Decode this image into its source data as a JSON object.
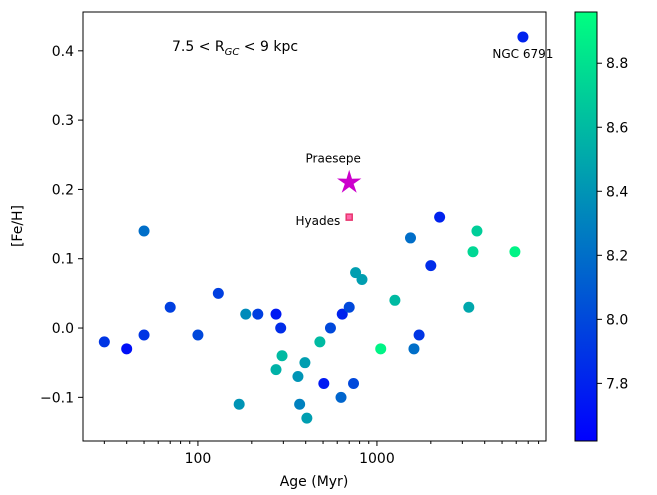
{
  "chart_data": {
    "type": "scatter",
    "xlabel": "Age (Myr)",
    "ylabel": "[Fe/H]",
    "annotation": {
      "before": "7.5 < R",
      "sub": "GC",
      "after": " < 9 kpc"
    },
    "log_x": true,
    "xlim": [
      22.8,
      8800
    ],
    "ylim": [
      -0.163,
      0.456
    ],
    "xticks": [
      100,
      1000
    ],
    "xminor_ticks": [
      30,
      40,
      50,
      60,
      70,
      80,
      90,
      200,
      300,
      400,
      500,
      600,
      700,
      800,
      900,
      2000,
      3000,
      4000,
      5000,
      6000,
      7000,
      8000
    ],
    "yticks": [
      {
        "value": -0.1,
        "label": "−0.1"
      },
      {
        "value": 0,
        "label": "0.0"
      },
      0.1,
      0.2,
      0.3,
      0.4
    ],
    "colormap": "winter",
    "clim": [
      7.62,
      8.96
    ],
    "cticks": [
      7.8,
      {
        "value": 8.0,
        "label": "8.0"
      },
      8.2,
      8.4,
      8.6,
      8.8
    ],
    "series": [
      {
        "x": [
          30,
          40,
          50,
          50,
          70,
          100,
          130,
          170,
          185,
          216,
          273,
          273,
          290,
          295,
          362,
          370,
          396,
          406,
          480,
          505,
          550,
          630,
          640,
          700,
          740,
          760,
          825,
          1050,
          1260,
          1540,
          1610,
          1720,
          2000,
          2240,
          3260,
          3440,
          3620,
          5900,
          6540
        ],
        "values": [
          -0.02,
          -0.03,
          0.14,
          -0.01,
          0.03,
          -0.01,
          0.05,
          -0.11,
          0.02,
          0.02,
          0.02,
          -0.06,
          0.0,
          -0.04,
          -0.07,
          -0.11,
          -0.05,
          -0.13,
          -0.02,
          -0.08,
          0.0,
          -0.1,
          0.02,
          0.03,
          -0.08,
          0.08,
          0.07,
          -0.03,
          0.04,
          0.13,
          -0.03,
          -0.01,
          0.09,
          0.16,
          0.03,
          0.11,
          0.14,
          0.11,
          0.42
        ],
        "c": [
          7.9,
          7.7,
          8.2,
          7.9,
          7.95,
          8.0,
          7.95,
          8.4,
          8.35,
          7.95,
          7.75,
          8.55,
          7.85,
          8.6,
          8.4,
          8.3,
          8.45,
          8.45,
          8.6,
          7.75,
          8.0,
          8.15,
          7.8,
          8.0,
          8.0,
          8.45,
          8.45,
          8.9,
          8.6,
          8.2,
          8.2,
          7.9,
          7.85,
          7.8,
          8.5,
          8.75,
          8.7,
          8.9,
          7.8
        ],
        "point_labels": [
          null,
          null,
          null,
          null,
          null,
          null,
          null,
          null,
          null,
          null,
          null,
          null,
          null,
          null,
          null,
          null,
          null,
          null,
          null,
          null,
          null,
          null,
          null,
          null,
          null,
          null,
          null,
          null,
          null,
          null,
          null,
          null,
          null,
          null,
          null,
          null,
          null,
          null,
          "NGC 6791"
        ]
      }
    ],
    "highlights": [
      {
        "name": "Praesepe",
        "x": 700,
        "value": 0.21,
        "color": "#cc00cc",
        "marker": "star"
      },
      {
        "name": "Hyades",
        "x": 700,
        "value": 0.16,
        "color": "#e8366e",
        "marker": "square"
      }
    ]
  }
}
